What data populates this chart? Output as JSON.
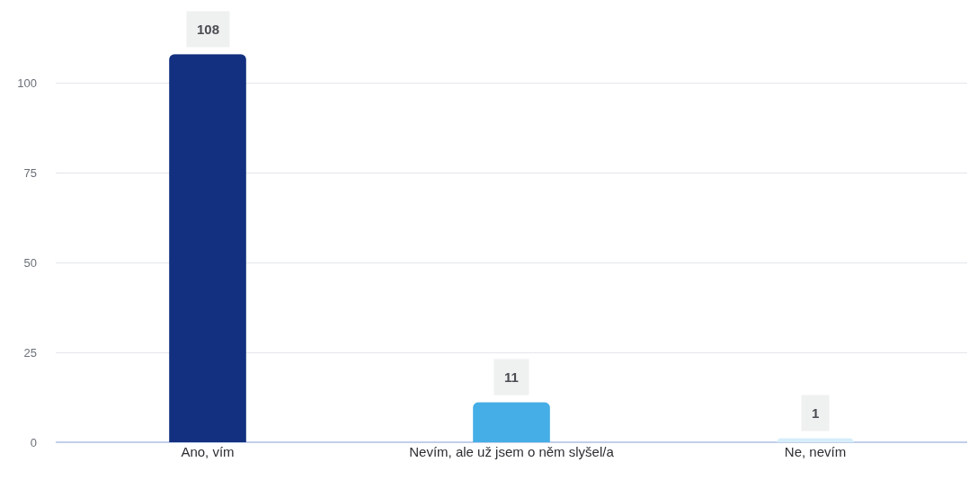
{
  "chart_data": {
    "type": "bar",
    "categories": [
      "Ano, vím",
      "Nevím, ale už jsem o něm slyšel/a",
      "Ne, nevím"
    ],
    "values": [
      108,
      11,
      1
    ],
    "colors": [
      "#12307f",
      "#45aee6",
      "#d6eefa"
    ],
    "ylim": [
      0,
      120
    ],
    "yticks": [
      0,
      25,
      50,
      75,
      100
    ],
    "grid": "y",
    "data_labels": true
  }
}
